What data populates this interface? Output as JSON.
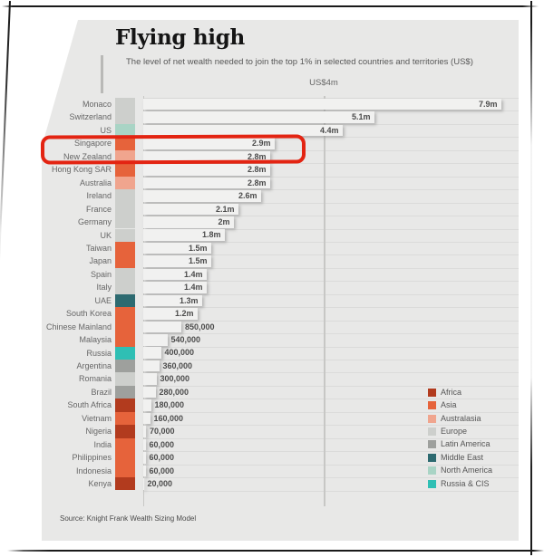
{
  "title": "Flying high",
  "subtitle": "The level of net wealth needed to join the top 1% in selected countries and territories (US$)",
  "axis_gridline_label": "US$4m",
  "source": "Source: Knight Frank Wealth Sizing Model",
  "highlight": {
    "country": "Singapore",
    "box_color": "#e32412"
  },
  "legend": [
    {
      "label": "Africa",
      "color": "#b23b1e"
    },
    {
      "label": "Asia",
      "color": "#e6633b"
    },
    {
      "label": "Australasia",
      "color": "#f0a58e"
    },
    {
      "label": "Europe",
      "color": "#cdcfcc"
    },
    {
      "label": "Latin America",
      "color": "#9ea09d"
    },
    {
      "label": "Middle East",
      "color": "#2d6a70"
    },
    {
      "label": "North America",
      "color": "#a9d4c5"
    },
    {
      "label": "Russia & CIS",
      "color": "#2fbfb4"
    }
  ],
  "chart_data": {
    "type": "bar",
    "orientation": "horizontal",
    "unit": "US$ millions",
    "xlim": [
      0,
      8.3
    ],
    "gridline_value": 4,
    "legend_position": "bottom-right",
    "rows": [
      {
        "country": "Monaco",
        "region": "Europe",
        "value_m": 7.9,
        "label": "7.9m"
      },
      {
        "country": "Switzerland",
        "region": "Europe",
        "value_m": 5.1,
        "label": "5.1m"
      },
      {
        "country": "US",
        "region": "North America",
        "value_m": 4.4,
        "label": "4.4m"
      },
      {
        "country": "Singapore",
        "region": "Asia",
        "value_m": 2.9,
        "label": "2.9m"
      },
      {
        "country": "New Zealand",
        "region": "Australasia",
        "value_m": 2.8,
        "label": "2.8m"
      },
      {
        "country": "Hong Kong SAR",
        "region": "Asia",
        "value_m": 2.8,
        "label": "2.8m"
      },
      {
        "country": "Australia",
        "region": "Australasia",
        "value_m": 2.8,
        "label": "2.8m"
      },
      {
        "country": "Ireland",
        "region": "Europe",
        "value_m": 2.6,
        "label": "2.6m"
      },
      {
        "country": "France",
        "region": "Europe",
        "value_m": 2.1,
        "label": "2.1m"
      },
      {
        "country": "Germany",
        "region": "Europe",
        "value_m": 2.0,
        "label": "2m"
      },
      {
        "country": "UK",
        "region": "Europe",
        "value_m": 1.8,
        "label": "1.8m"
      },
      {
        "country": "Taiwan",
        "region": "Asia",
        "value_m": 1.5,
        "label": "1.5m"
      },
      {
        "country": "Japan",
        "region": "Asia",
        "value_m": 1.5,
        "label": "1.5m"
      },
      {
        "country": "Spain",
        "region": "Europe",
        "value_m": 1.4,
        "label": "1.4m"
      },
      {
        "country": "Italy",
        "region": "Europe",
        "value_m": 1.4,
        "label": "1.4m"
      },
      {
        "country": "UAE",
        "region": "Middle East",
        "value_m": 1.3,
        "label": "1.3m"
      },
      {
        "country": "South Korea",
        "region": "Asia",
        "value_m": 1.2,
        "label": "1.2m"
      },
      {
        "country": "Chinese Mainland",
        "region": "Asia",
        "value_m": 0.85,
        "label": "850,000"
      },
      {
        "country": "Malaysia",
        "region": "Asia",
        "value_m": 0.54,
        "label": "540,000"
      },
      {
        "country": "Russia",
        "region": "Russia & CIS",
        "value_m": 0.4,
        "label": "400,000"
      },
      {
        "country": "Argentina",
        "region": "Latin America",
        "value_m": 0.36,
        "label": "360,000"
      },
      {
        "country": "Romania",
        "region": "Europe",
        "value_m": 0.3,
        "label": "300,000"
      },
      {
        "country": "Brazil",
        "region": "Latin America",
        "value_m": 0.28,
        "label": "280,000"
      },
      {
        "country": "South Africa",
        "region": "Africa",
        "value_m": 0.18,
        "label": "180,000"
      },
      {
        "country": "Vietnam",
        "region": "Asia",
        "value_m": 0.16,
        "label": "160,000"
      },
      {
        "country": "Nigeria",
        "region": "Africa",
        "value_m": 0.07,
        "label": "70,000"
      },
      {
        "country": "India",
        "region": "Asia",
        "value_m": 0.06,
        "label": "60,000"
      },
      {
        "country": "Philippines",
        "region": "Asia",
        "value_m": 0.06,
        "label": "60,000"
      },
      {
        "country": "Indonesia",
        "region": "Asia",
        "value_m": 0.06,
        "label": "60,000"
      },
      {
        "country": "Kenya",
        "region": "Africa",
        "value_m": 0.02,
        "label": "20,000"
      }
    ]
  }
}
